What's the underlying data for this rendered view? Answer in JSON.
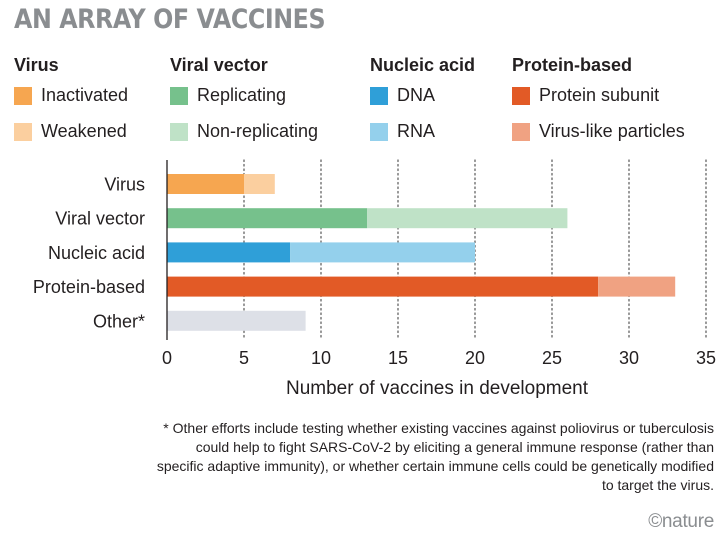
{
  "title": "AN ARRAY OF VACCINES",
  "legend": [
    {
      "group": "Virus",
      "items": [
        {
          "label": "Inactivated",
          "color": "#f6a650"
        },
        {
          "label": "Weakened",
          "color": "#fbcf9f"
        }
      ]
    },
    {
      "group": "Viral vector",
      "items": [
        {
          "label": "Replicating",
          "color": "#76c18c"
        },
        {
          "label": "Non-replicating",
          "color": "#bfe2c7"
        }
      ]
    },
    {
      "group": "Nucleic acid",
      "items": [
        {
          "label": "DNA",
          "color": "#2f9fd8"
        },
        {
          "label": "RNA",
          "color": "#94d0ec"
        }
      ]
    },
    {
      "group": "Protein-based",
      "items": [
        {
          "label": "Protein subunit",
          "color": "#e25a26"
        },
        {
          "label": "Virus-like particles",
          "color": "#f0a282"
        }
      ]
    }
  ],
  "chart_data": {
    "type": "bar",
    "orientation": "horizontal",
    "stacked": true,
    "categories": [
      "Virus",
      "Viral vector",
      "Nucleic acid",
      "Protein-based",
      "Other*"
    ],
    "segments": [
      [
        {
          "name": "Inactivated",
          "value": 5,
          "color": "#f6a650"
        },
        {
          "name": "Weakened",
          "value": 2,
          "color": "#fbcf9f"
        }
      ],
      [
        {
          "name": "Replicating",
          "value": 13,
          "color": "#76c18c"
        },
        {
          "name": "Non-replicating",
          "value": 13,
          "color": "#bfe2c7"
        }
      ],
      [
        {
          "name": "DNA",
          "value": 8,
          "color": "#2f9fd8"
        },
        {
          "name": "RNA",
          "value": 12,
          "color": "#94d0ec"
        }
      ],
      [
        {
          "name": "Protein subunit",
          "value": 28,
          "color": "#e25a26"
        },
        {
          "name": "Virus-like particles",
          "value": 5,
          "color": "#f0a282"
        }
      ],
      [
        {
          "name": "Other",
          "value": 9,
          "color": "#dde0e7"
        }
      ]
    ],
    "xlabel": "Number of vaccines in development",
    "xlim": [
      0,
      35
    ],
    "xticks": [
      0,
      5,
      10,
      15,
      20,
      25,
      30,
      35
    ],
    "grid": "vertical dotted"
  },
  "footnote": "* Other efforts include testing whether existing vaccines against poliovirus or tuberculosis could help to fight SARS-CoV-2 by eliciting a general immune response (rather than specific adaptive immunity), or whether certain immune cells could be genetically modified to target the virus.",
  "credit": "©nature"
}
